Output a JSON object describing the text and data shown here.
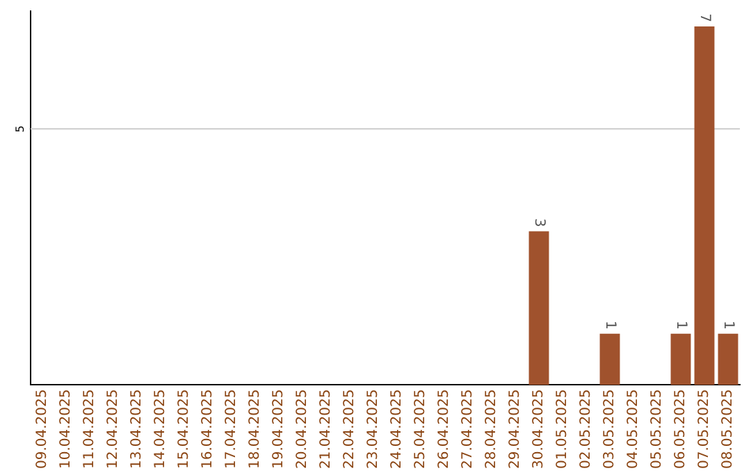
{
  "chart_data": {
    "type": "bar",
    "categories": [
      "09.04.2025",
      "10.04.2025",
      "11.04.2025",
      "12.04.2025",
      "13.04.2025",
      "14.04.2025",
      "15.04.2025",
      "16.04.2025",
      "17.04.2025",
      "18.04.2025",
      "19.04.2025",
      "20.04.2025",
      "21.04.2025",
      "22.04.2025",
      "23.04.2025",
      "24.04.2025",
      "25.04.2025",
      "26.04.2025",
      "27.04.2025",
      "28.04.2025",
      "29.04.2025",
      "30.04.2025",
      "01.05.2025",
      "02.05.2025",
      "03.05.2025",
      "04.05.2025",
      "05.05.2025",
      "06.05.2025",
      "07.05.2025",
      "08.05.2025"
    ],
    "values": [
      null,
      null,
      null,
      null,
      null,
      null,
      null,
      null,
      null,
      null,
      null,
      null,
      null,
      null,
      null,
      null,
      null,
      null,
      null,
      null,
      null,
      3,
      null,
      null,
      1,
      null,
      null,
      1,
      7,
      1
    ],
    "value_labels": [
      null,
      null,
      null,
      null,
      null,
      null,
      null,
      null,
      null,
      null,
      null,
      null,
      null,
      null,
      null,
      null,
      null,
      null,
      null,
      null,
      null,
      "3",
      null,
      null,
      "1",
      null,
      null,
      "1",
      "7",
      "1"
    ],
    "color": "#a0522d",
    "ylim": [
      0,
      7.3
    ],
    "ref_lines": [
      {
        "axis": "y",
        "value": 5,
        "label": "5",
        "color": "#cccccc"
      }
    ],
    "legend": false
  }
}
